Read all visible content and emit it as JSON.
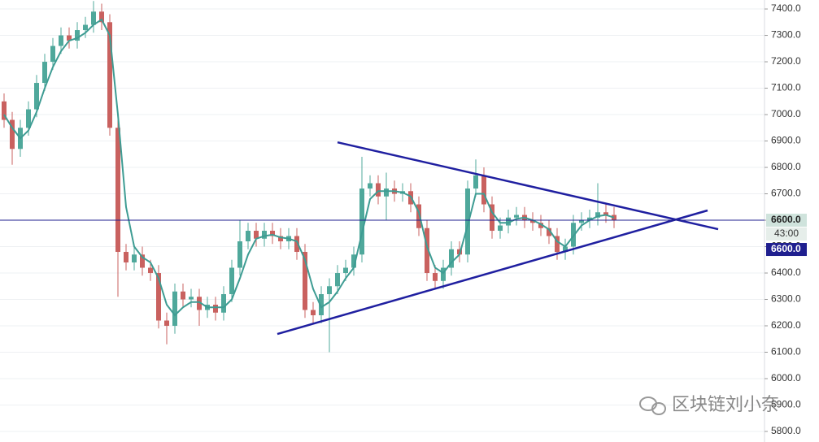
{
  "chart_data": {
    "type": "candlestick",
    "open": [
      7050,
      6980,
      6870,
      6950,
      7020,
      7120,
      7200,
      7260,
      7300,
      7280,
      7320,
      7340,
      7390,
      7350,
      6950,
      6480,
      6440,
      6470,
      6420,
      6400,
      6220,
      6200,
      6330,
      6300,
      6310,
      6260,
      6280,
      6250,
      6320,
      6420,
      6520,
      6560,
      6530,
      6560,
      6540,
      6520,
      6540,
      6480,
      6260,
      6240,
      6320,
      6350,
      6400,
      6420,
      6470,
      6720,
      6740,
      6690,
      6720,
      6700,
      6710,
      6660,
      6570,
      6400,
      6370,
      6420,
      6490,
      6470,
      6720,
      6770,
      6660,
      6560,
      6580,
      6610,
      6620,
      6600,
      6590,
      6570,
      6540,
      6480,
      6500,
      6590,
      6600,
      6610,
      6630,
      6620
    ],
    "high": [
      7080,
      7010,
      6980,
      7050,
      7150,
      7230,
      7290,
      7330,
      7330,
      7350,
      7370,
      7430,
      7420,
      7380,
      6980,
      6510,
      6500,
      6500,
      6450,
      6430,
      6250,
      6360,
      6360,
      6340,
      6340,
      6310,
      6310,
      6350,
      6450,
      6600,
      6590,
      6590,
      6590,
      6590,
      6570,
      6570,
      6570,
      6510,
      6290,
      6350,
      6380,
      6430,
      6450,
      6500,
      6840,
      6770,
      6770,
      6780,
      6750,
      6740,
      6740,
      6690,
      6600,
      6430,
      6450,
      6520,
      6520,
      6750,
      6830,
      6800,
      6690,
      6610,
      6640,
      6650,
      6650,
      6630,
      6620,
      6600,
      6570,
      6530,
      6620,
      6630,
      6640,
      6740,
      6660,
      6650
    ],
    "low": [
      6950,
      6810,
      6840,
      6920,
      6990,
      7090,
      7170,
      7230,
      7250,
      7250,
      7290,
      7310,
      7320,
      6920,
      6310,
      6410,
      6410,
      6390,
      6370,
      6190,
      6130,
      6170,
      6270,
      6270,
      6200,
      6230,
      6220,
      6220,
      6290,
      6390,
      6490,
      6500,
      6500,
      6510,
      6490,
      6490,
      6450,
      6230,
      6210,
      6210,
      6100,
      6320,
      6370,
      6390,
      6440,
      6690,
      6660,
      6600,
      6670,
      6670,
      6630,
      6540,
      6370,
      6340,
      6340,
      6390,
      6440,
      6440,
      6690,
      6630,
      6530,
      6530,
      6550,
      6580,
      6570,
      6560,
      6540,
      6510,
      6450,
      6450,
      6470,
      6560,
      6570,
      6580,
      6590,
      6570
    ],
    "close": [
      6980,
      6870,
      6950,
      7020,
      7120,
      7200,
      7260,
      7300,
      7280,
      7320,
      7340,
      7390,
      7350,
      6950,
      6480,
      6440,
      6470,
      6420,
      6400,
      6220,
      6200,
      6330,
      6300,
      6310,
      6260,
      6280,
      6250,
      6320,
      6420,
      6520,
      6560,
      6530,
      6560,
      6540,
      6520,
      6540,
      6480,
      6260,
      6240,
      6320,
      6350,
      6400,
      6420,
      6470,
      6720,
      6740,
      6690,
      6720,
      6700,
      6710,
      6660,
      6570,
      6400,
      6370,
      6420,
      6490,
      6470,
      6720,
      6770,
      6660,
      6560,
      6580,
      6610,
      6620,
      6600,
      6590,
      6570,
      6540,
      6480,
      6500,
      6590,
      6600,
      6610,
      6630,
      6620,
      6600
    ],
    "ma": [
      7000,
      6950,
      6910,
      6940,
      7010,
      7100,
      7180,
      7240,
      7280,
      7290,
      7310,
      7340,
      7360,
      7300,
      7000,
      6650,
      6500,
      6460,
      6440,
      6380,
      6280,
      6240,
      6270,
      6290,
      6290,
      6270,
      6270,
      6270,
      6300,
      6380,
      6470,
      6530,
      6540,
      6545,
      6535,
      6530,
      6520,
      6450,
      6340,
      6270,
      6290,
      6330,
      6380,
      6420,
      6550,
      6680,
      6710,
      6710,
      6710,
      6705,
      6690,
      6630,
      6500,
      6420,
      6400,
      6440,
      6470,
      6580,
      6700,
      6700,
      6630,
      6590,
      6590,
      6605,
      6610,
      6600,
      6585,
      6565,
      6520,
      6500,
      6540,
      6580,
      6600,
      6615,
      6620,
      6610
    ],
    "up_color": "#4fa89b",
    "down_color": "#c9615f",
    "ma_color": "#3e9c93",
    "trendlines": [
      {
        "x": [
          41,
          87.8
        ],
        "y": [
          6895,
          6566
        ],
        "color": "#1f1fa0"
      },
      {
        "x": [
          33.6,
          86.5
        ],
        "y": [
          6169,
          6637
        ],
        "color": "#1f1fa0"
      }
    ],
    "price_line": {
      "value": 6600,
      "color": "#1f1f8f"
    },
    "last_price_label": "6600.0",
    "countdown": "43:00",
    "line_label": "6600.0",
    "ylim": [
      5760,
      7434
    ],
    "yticks": [
      {
        "value": 5800,
        "label": "5800.0"
      },
      {
        "value": 5900,
        "label": "5900.0"
      },
      {
        "value": 6000,
        "label": "6000.0"
      },
      {
        "value": 6100,
        "label": "6100.0"
      },
      {
        "value": 6200,
        "label": "6200.0"
      },
      {
        "value": 6300,
        "label": "6300.0"
      },
      {
        "value": 6400,
        "label": "6400.0"
      },
      {
        "value": 6500,
        "label": "6500.0"
      },
      {
        "value": 6600,
        "label": "6600.0"
      },
      {
        "value": 6700,
        "label": "6700.0"
      },
      {
        "value": 6800,
        "label": "6800.0"
      },
      {
        "value": 6900,
        "label": "6900.0"
      },
      {
        "value": 7000,
        "label": "7000.0"
      },
      {
        "value": 7100,
        "label": "7100.0"
      },
      {
        "value": 7200,
        "label": "7200.0"
      },
      {
        "value": 7300,
        "label": "7300.0"
      },
      {
        "value": 7400,
        "label": "7400.0"
      }
    ],
    "grid": true,
    "watermark": "区块链刘小奈"
  }
}
